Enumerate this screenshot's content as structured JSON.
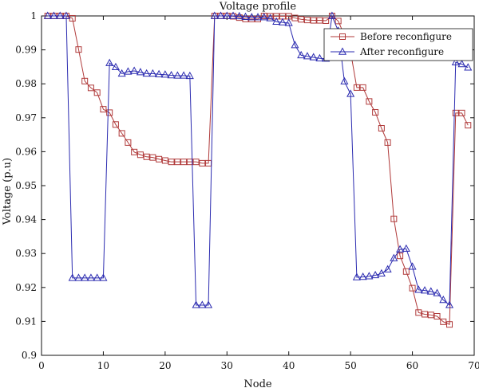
{
  "chart_data": {
    "type": "line",
    "title": "Voltage profile",
    "xlabel": "Node",
    "ylabel": "Voltage (p.u)",
    "xlim": [
      0,
      70
    ],
    "ylim": [
      0.9,
      1.0
    ],
    "x_ticks": [
      "0",
      "10",
      "20",
      "30",
      "40",
      "50",
      "60",
      "70"
    ],
    "y_ticks": [
      "0.9",
      "0.91",
      "0.92",
      "0.93",
      "0.94",
      "0.95",
      "0.96",
      "0.97",
      "0.98",
      "0.99",
      "1"
    ],
    "grid": false,
    "legend_position": "top-right",
    "x": [
      1,
      2,
      3,
      4,
      5,
      6,
      7,
      8,
      9,
      10,
      11,
      12,
      13,
      14,
      15,
      16,
      17,
      18,
      19,
      20,
      21,
      22,
      23,
      24,
      25,
      26,
      27,
      28,
      29,
      30,
      31,
      32,
      33,
      34,
      35,
      36,
      37,
      38,
      39,
      40,
      41,
      42,
      43,
      44,
      45,
      46,
      47,
      48,
      49,
      50,
      51,
      52,
      53,
      54,
      55,
      56,
      57,
      58,
      59,
      60,
      61,
      62,
      63,
      64,
      65,
      66,
      67,
      68,
      69
    ],
    "series": [
      {
        "name": "Before reconfigure",
        "color": "#b03a3a",
        "marker": "square",
        "values": [
          1.0,
          1.0,
          1.0,
          1.0,
          0.9993,
          0.9901,
          0.9808,
          0.9788,
          0.9774,
          0.9725,
          0.9715,
          0.968,
          0.9654,
          0.9627,
          0.9599,
          0.9591,
          0.9585,
          0.9583,
          0.9578,
          0.9574,
          0.957,
          0.957,
          0.957,
          0.957,
          0.957,
          0.9566,
          0.9566,
          1.0,
          1.0,
          1.0,
          0.9999,
          0.9995,
          0.9991,
          0.9991,
          0.9991,
          1.0,
          0.9999,
          0.9999,
          0.9999,
          0.9999,
          0.9994,
          0.999,
          0.9988,
          0.9987,
          0.9987,
          0.9986,
          1.0,
          0.9985,
          0.9943,
          0.9895,
          0.9789,
          0.9789,
          0.9748,
          0.9716,
          0.9669,
          0.9627,
          0.9402,
          0.9293,
          0.9247,
          0.9198,
          0.9126,
          0.9121,
          0.9119,
          0.9115,
          0.9099,
          0.9091,
          0.9714,
          0.9714,
          0.9678
        ]
      },
      {
        "name": "After reconfigure",
        "color": "#2b2bb0",
        "marker": "triangle",
        "values": [
          1.0,
          1.0,
          1.0,
          1.0,
          0.9228,
          0.9228,
          0.9228,
          0.9228,
          0.9228,
          0.9228,
          0.9861,
          0.9849,
          0.983,
          0.9836,
          0.9838,
          0.9834,
          0.983,
          0.983,
          0.9828,
          0.9827,
          0.9825,
          0.9824,
          0.9824,
          0.9823,
          0.9148,
          0.9148,
          0.9148,
          1.0,
          1.0,
          1.0,
          1.0,
          0.9999,
          0.9997,
          0.9996,
          0.9996,
          0.9996,
          0.9993,
          0.9983,
          0.9981,
          0.9979,
          0.9914,
          0.9884,
          0.9881,
          0.9878,
          0.9875,
          0.9874,
          1.0,
          0.9956,
          0.9807,
          0.977,
          0.923,
          0.9231,
          0.9233,
          0.9236,
          0.9241,
          0.9253,
          0.9286,
          0.9312,
          0.9314,
          0.9261,
          0.9193,
          0.9191,
          0.9188,
          0.9183,
          0.9163,
          0.9148,
          0.9863,
          0.9858,
          0.9848
        ]
      }
    ]
  }
}
